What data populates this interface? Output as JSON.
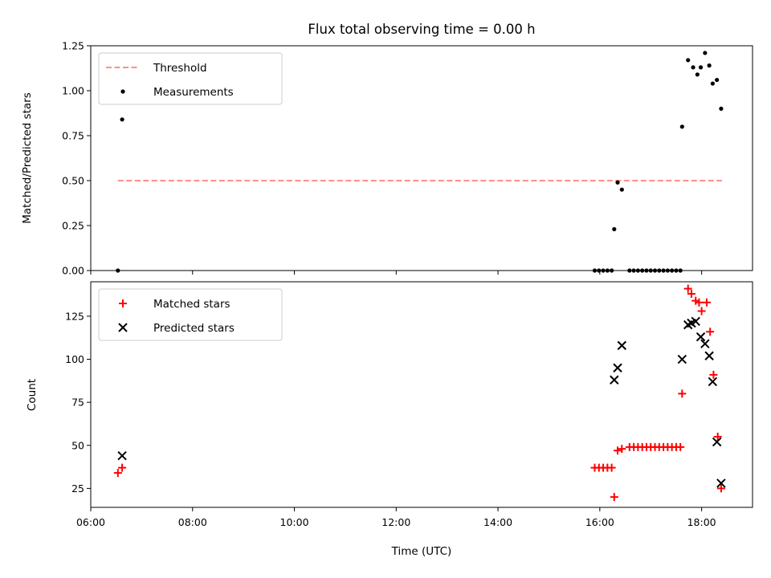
{
  "chart_data": [
    {
      "type": "scatter",
      "title": "Flux total observing time = 0.00 h",
      "xlabel": "",
      "ylabel": "Matched/Predicted stars",
      "ylim": [
        0,
        1.25
      ],
      "xlim": [
        "06:00",
        "19:00"
      ],
      "yticks": [
        "0.00",
        "0.25",
        "0.50",
        "0.75",
        "1.00",
        "1.25"
      ],
      "grid": false,
      "legend_position": "top-left",
      "series": [
        {
          "name": "Threshold",
          "style": "dashed-line",
          "color": "#ff7f7f",
          "points": [
            [
              "06:32",
              0.5
            ],
            [
              "18:24",
              0.5
            ]
          ]
        },
        {
          "name": "Measurements",
          "style": "dot",
          "color": "#000000",
          "points": [
            [
              "06:32",
              0.0
            ],
            [
              "06:37",
              0.84
            ],
            [
              "15:54",
              0.0
            ],
            [
              "15:59",
              0.0
            ],
            [
              "16:04",
              0.0
            ],
            [
              "16:09",
              0.0
            ],
            [
              "16:14",
              0.0
            ],
            [
              "16:17",
              0.23
            ],
            [
              "16:21",
              0.49
            ],
            [
              "16:26",
              0.45
            ],
            [
              "16:35",
              0.0
            ],
            [
              "16:40",
              0.0
            ],
            [
              "16:45",
              0.0
            ],
            [
              "16:50",
              0.0
            ],
            [
              "16:55",
              0.0
            ],
            [
              "17:00",
              0.0
            ],
            [
              "17:05",
              0.0
            ],
            [
              "17:10",
              0.0
            ],
            [
              "17:15",
              0.0
            ],
            [
              "17:20",
              0.0
            ],
            [
              "17:25",
              0.0
            ],
            [
              "17:30",
              0.0
            ],
            [
              "17:35",
              0.0
            ],
            [
              "17:37",
              0.8
            ],
            [
              "17:44",
              1.17
            ],
            [
              "17:50",
              1.13
            ],
            [
              "17:55",
              1.09
            ],
            [
              "17:59",
              1.13
            ],
            [
              "18:04",
              1.21
            ],
            [
              "18:09",
              1.14
            ],
            [
              "18:13",
              1.04
            ],
            [
              "18:18",
              1.06
            ],
            [
              "18:23",
              0.9
            ]
          ]
        }
      ]
    },
    {
      "type": "scatter",
      "title": "",
      "xlabel": "Time (UTC)",
      "ylabel": "Count",
      "ylim": [
        14,
        145
      ],
      "xlim": [
        "06:00",
        "19:00"
      ],
      "xticks": [
        "06:00",
        "08:00",
        "10:00",
        "12:00",
        "14:00",
        "16:00",
        "18:00"
      ],
      "yticks": [
        "25",
        "50",
        "75",
        "100",
        "125"
      ],
      "grid": false,
      "legend_position": "top-left",
      "series": [
        {
          "name": "Matched stars",
          "marker": "plus",
          "color": "#ff0000",
          "points": [
            [
              "06:32",
              34
            ],
            [
              "06:37",
              37
            ],
            [
              "15:54",
              37
            ],
            [
              "15:59",
              37
            ],
            [
              "16:04",
              37
            ],
            [
              "16:09",
              37
            ],
            [
              "16:14",
              37
            ],
            [
              "16:17",
              20
            ],
            [
              "16:21",
              47
            ],
            [
              "16:26",
              48
            ],
            [
              "16:35",
              49
            ],
            [
              "16:40",
              49
            ],
            [
              "16:45",
              49
            ],
            [
              "16:50",
              49
            ],
            [
              "16:55",
              49
            ],
            [
              "17:00",
              49
            ],
            [
              "17:05",
              49
            ],
            [
              "17:10",
              49
            ],
            [
              "17:15",
              49
            ],
            [
              "17:20",
              49
            ],
            [
              "17:25",
              49
            ],
            [
              "17:30",
              49
            ],
            [
              "17:35",
              49
            ],
            [
              "17:37",
              80
            ],
            [
              "17:44",
              141
            ],
            [
              "17:48",
              138
            ],
            [
              "17:53",
              134
            ],
            [
              "17:57",
              133
            ],
            [
              "18:00",
              128
            ],
            [
              "18:06",
              133
            ],
            [
              "18:10",
              116
            ],
            [
              "18:14",
              91
            ],
            [
              "18:19",
              55
            ],
            [
              "18:23",
              25
            ]
          ]
        },
        {
          "name": "Predicted stars",
          "marker": "x",
          "color": "#000000",
          "points": [
            [
              "06:37",
              44
            ],
            [
              "16:17",
              88
            ],
            [
              "16:21",
              95
            ],
            [
              "16:26",
              108
            ],
            [
              "17:37",
              100
            ],
            [
              "17:44",
              120
            ],
            [
              "17:48",
              121
            ],
            [
              "17:53",
              122
            ],
            [
              "17:59",
              113
            ],
            [
              "18:04",
              109
            ],
            [
              "18:09",
              102
            ],
            [
              "18:13",
              87
            ],
            [
              "18:18",
              52
            ],
            [
              "18:23",
              28
            ]
          ]
        }
      ]
    }
  ]
}
